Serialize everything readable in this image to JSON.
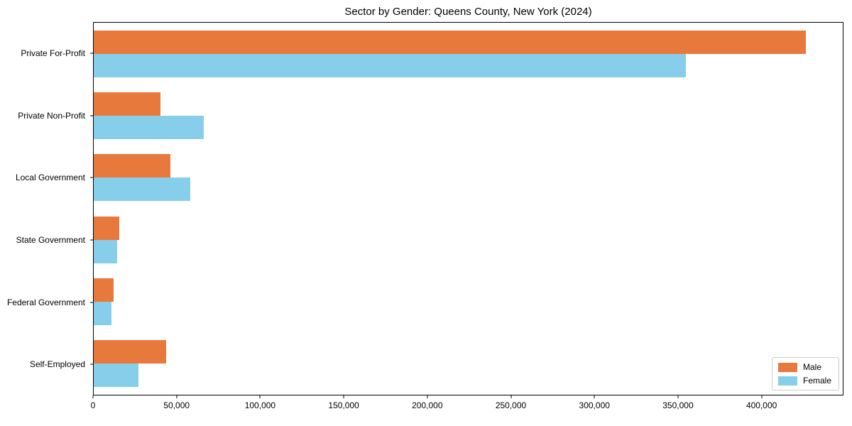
{
  "chart_data": {
    "type": "bar",
    "orientation": "horizontal",
    "title": "Sector by Gender: Queens County, New York (2024)",
    "categories": [
      "Private For-Profit",
      "Private Non-Profit",
      "Local Government",
      "State Government",
      "Federal Government",
      "Self-Employed"
    ],
    "series": [
      {
        "name": "Male",
        "color": "#e8793c",
        "values": [
          427000,
          40000,
          46000,
          15500,
          12000,
          43500
        ]
      },
      {
        "name": "Female",
        "color": "#87ceeb",
        "values": [
          355000,
          66000,
          58000,
          14000,
          10500,
          27000
        ]
      }
    ],
    "xlabel": "",
    "ylabel": "",
    "xlim": [
      0,
      449000
    ],
    "xticks": [
      0,
      50000,
      100000,
      150000,
      200000,
      250000,
      300000,
      350000,
      400000
    ],
    "xtick_labels": [
      "0",
      "50,000",
      "100,000",
      "150,000",
      "200,000",
      "250,000",
      "300,000",
      "350,000",
      "400,000"
    ],
    "grid": false,
    "legend_position": "lower right"
  }
}
